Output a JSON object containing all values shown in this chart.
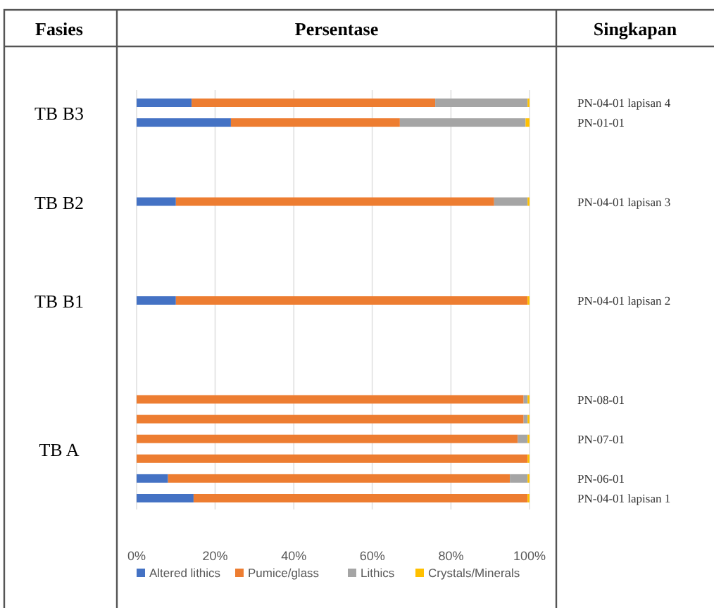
{
  "chart_data": {
    "type": "bar",
    "orientation": "horizontal",
    "stacked": true,
    "title": "Persentase",
    "ylabel": "Fasies",
    "y2label": "Singkapan",
    "categories": [
      "PN-04-01 lapisan 4",
      "PN-01-01",
      null,
      null,
      null,
      "PN-04-01 lapisan 3",
      null,
      null,
      null,
      null,
      "PN-04-01 lapisan 2",
      null,
      null,
      null,
      null,
      "PN-08-01",
      null,
      "PN-07-01",
      null,
      "PN-06-01",
      "PN-04-01 lapisan 1"
    ],
    "series": [
      {
        "name": "Altered lithics",
        "color": "#4472c4",
        "values": [
          14,
          24,
          null,
          null,
          null,
          10,
          null,
          null,
          null,
          null,
          10,
          null,
          null,
          null,
          null,
          0,
          0,
          0,
          0,
          8,
          14.5
        ]
      },
      {
        "name": "Pumice/glass",
        "color": "#ed7d31",
        "values": [
          62,
          43,
          null,
          null,
          null,
          81,
          null,
          null,
          null,
          null,
          89.5,
          null,
          null,
          null,
          null,
          98.5,
          98.5,
          97,
          99.5,
          87,
          85
        ]
      },
      {
        "name": "Lithics",
        "color": "#a5a5a5",
        "values": [
          23.5,
          32,
          null,
          null,
          null,
          8.5,
          null,
          null,
          null,
          null,
          0,
          null,
          null,
          null,
          null,
          1,
          1,
          2.5,
          0,
          4.5,
          0
        ]
      },
      {
        "name": "Crystals/Minerals",
        "color": "#ffc000",
        "values": [
          0.5,
          1,
          null,
          null,
          null,
          0.5,
          null,
          null,
          null,
          null,
          0.5,
          null,
          null,
          null,
          null,
          0.5,
          0.5,
          0.5,
          0.5,
          0.5,
          0.5
        ]
      }
    ],
    "xlim": [
      0,
      100
    ],
    "xticks": [
      {
        "value": 0,
        "label": "0%"
      },
      {
        "value": 20,
        "label": "20%"
      },
      {
        "value": 40,
        "label": "40%"
      },
      {
        "value": 60,
        "label": "60%"
      },
      {
        "value": 80,
        "label": "80%"
      },
      {
        "value": 100,
        "label": "100%"
      }
    ],
    "grid": "x",
    "legend": "bottom",
    "annotations": [
      "TB B3",
      "TB B2",
      "TB B1",
      "TB A"
    ]
  }
}
